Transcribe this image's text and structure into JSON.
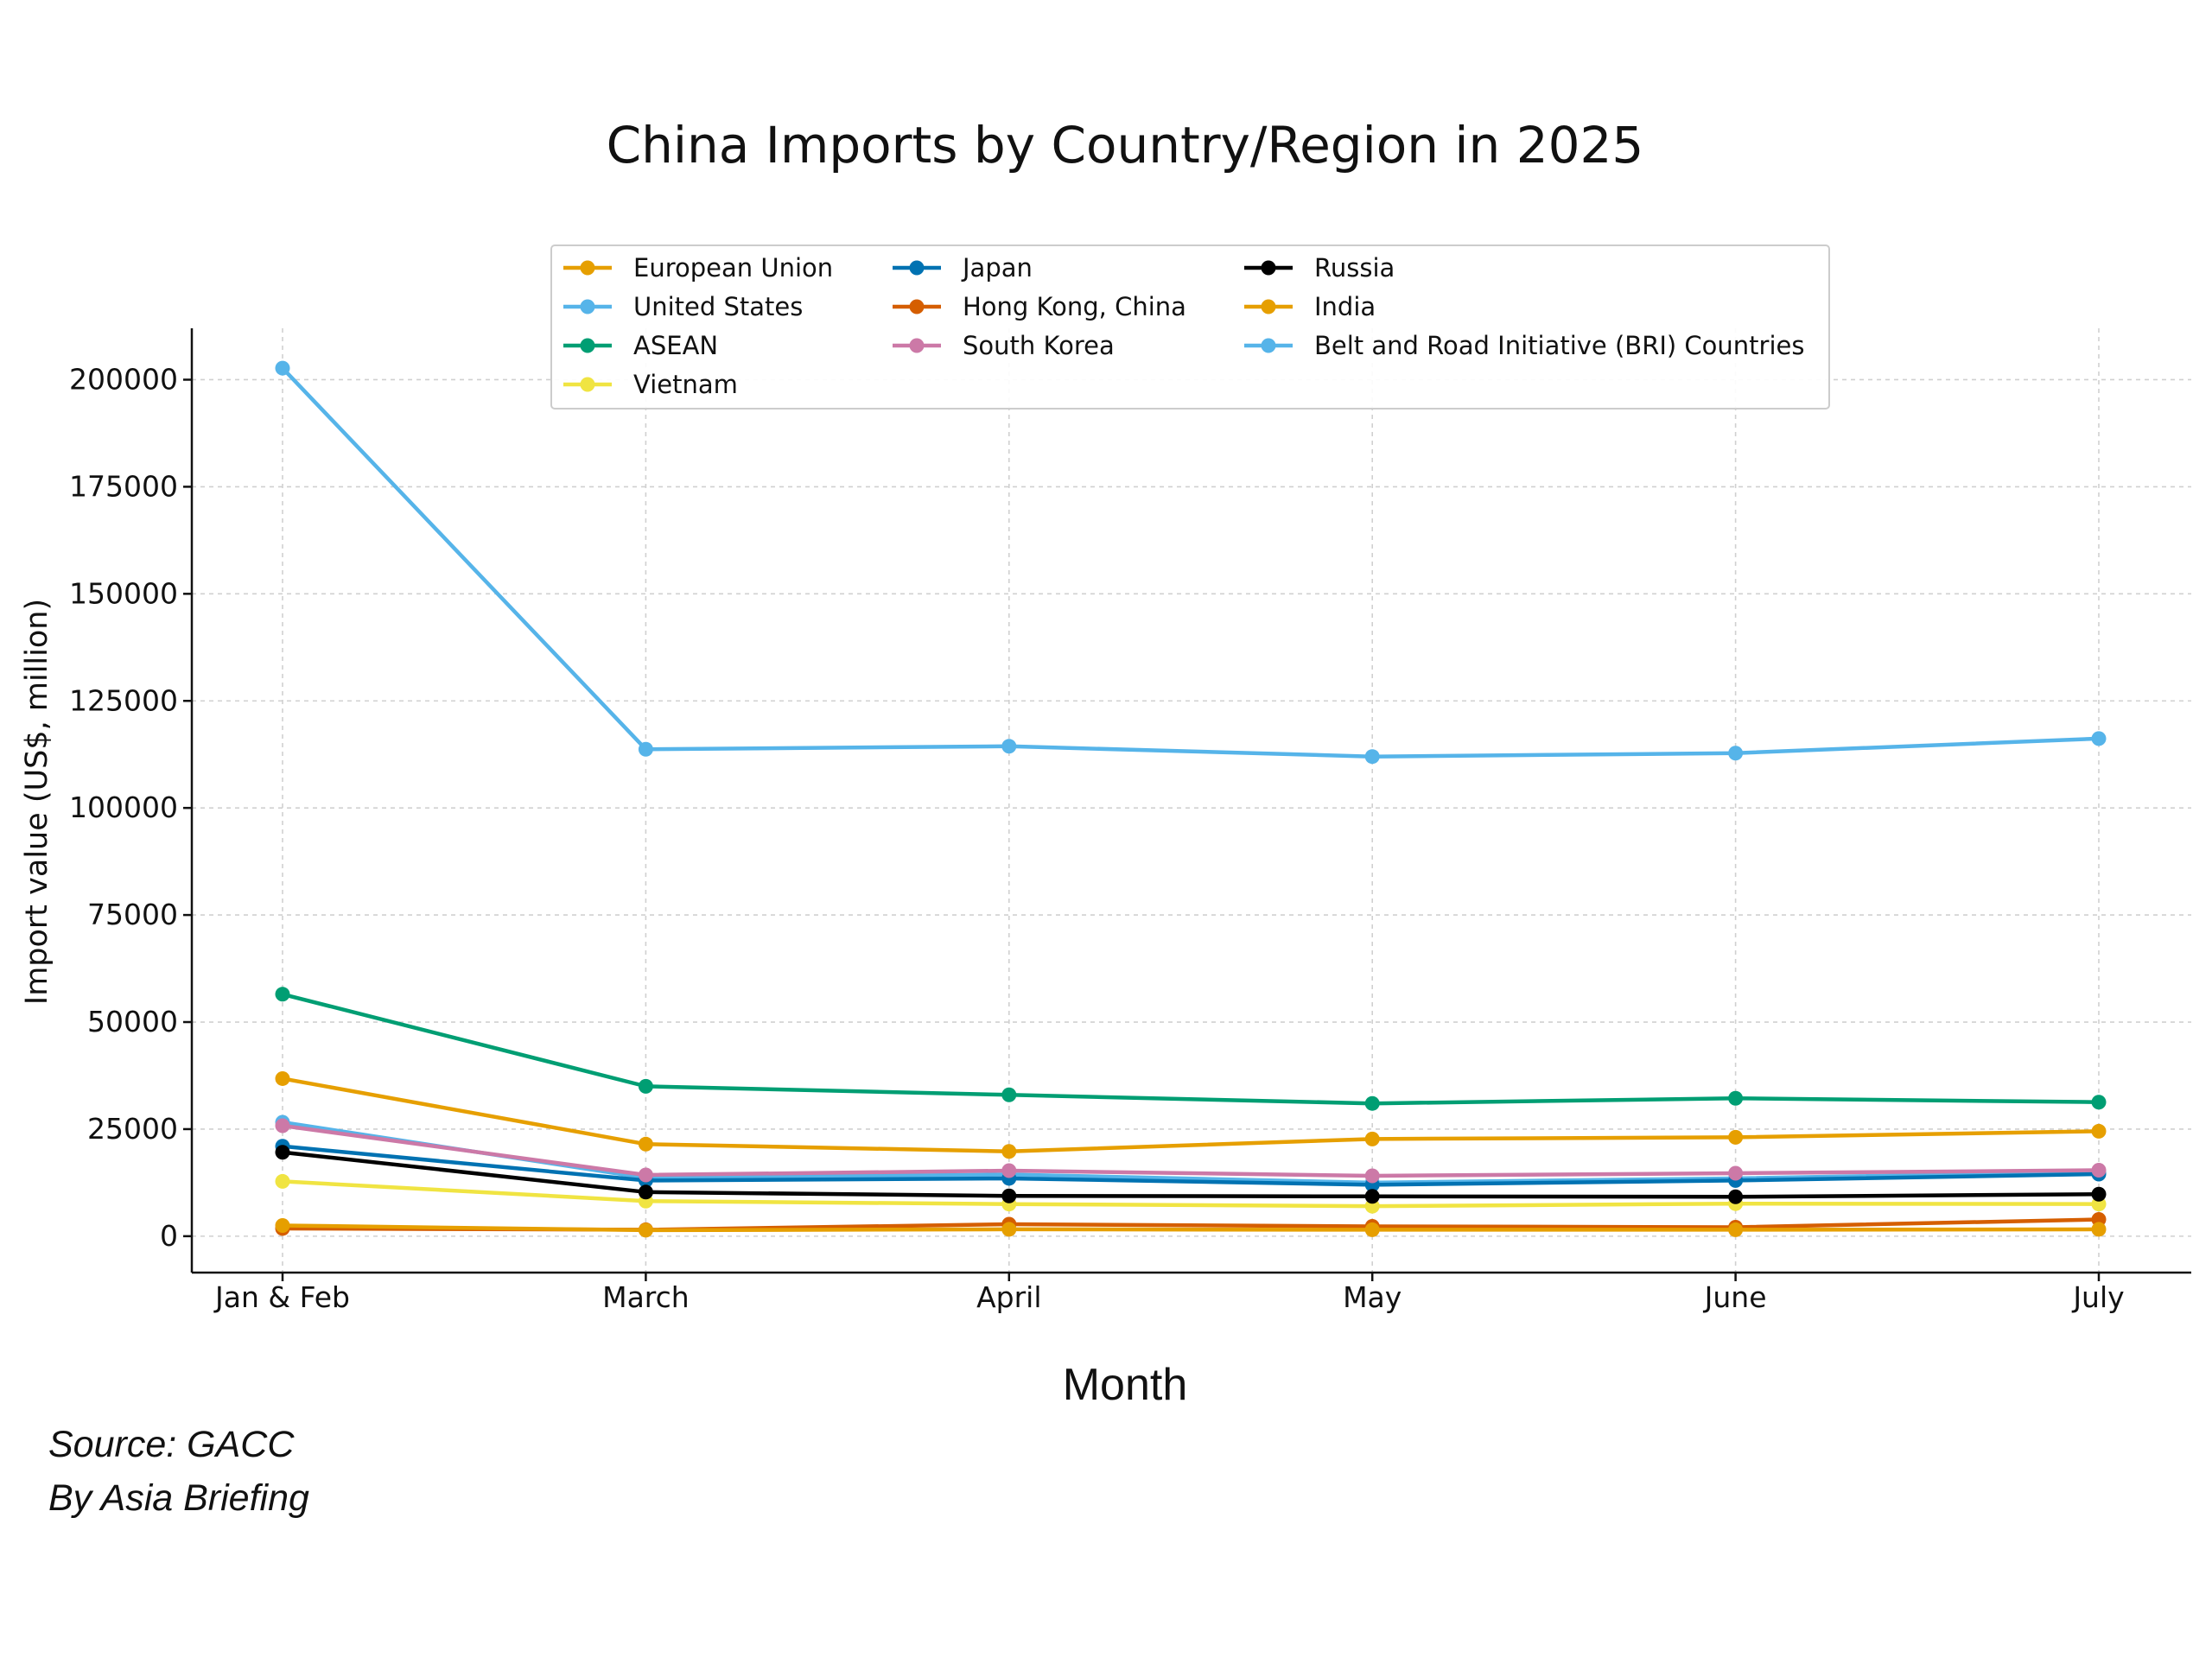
{
  "chart_data": {
    "type": "line",
    "title": "China Imports by Country/Region in 2025",
    "xlabel": "Month",
    "ylabel": "Import value (US$, million)",
    "categories": [
      "Jan & Feb",
      "March",
      "April",
      "May",
      "June",
      "July"
    ],
    "ylim": [
      -8500,
      212000
    ],
    "yticks": [
      0,
      25000,
      50000,
      75000,
      100000,
      125000,
      150000,
      175000,
      200000
    ],
    "grid": true,
    "legend_position": "top-center",
    "series": [
      {
        "name": "European Union",
        "color": "#E69F00",
        "values": [
          36800,
          21500,
          19800,
          22700,
          23100,
          24500
        ]
      },
      {
        "name": "United States",
        "color": "#56B4E9",
        "values": [
          26600,
          13600,
          14400,
          12500,
          13500,
          15000
        ]
      },
      {
        "name": "ASEAN",
        "color": "#009E73",
        "values": [
          56500,
          35000,
          33000,
          31000,
          32200,
          31300
        ]
      },
      {
        "name": "Vietnam",
        "color": "#F0E442",
        "values": [
          12800,
          8200,
          7500,
          7000,
          7600,
          7500
        ]
      },
      {
        "name": "Japan",
        "color": "#0072B2",
        "values": [
          21000,
          13000,
          13500,
          12000,
          13000,
          14500
        ]
      },
      {
        "name": "Hong Kong, China",
        "color": "#D55E00",
        "values": [
          1800,
          1500,
          2800,
          2300,
          2100,
          3900
        ]
      },
      {
        "name": "South Korea",
        "color": "#CC79A7",
        "values": [
          25800,
          14300,
          15300,
          14100,
          14700,
          15400
        ]
      },
      {
        "name": "Russia",
        "color": "#000000",
        "values": [
          19600,
          10300,
          9400,
          9300,
          9200,
          9800
        ]
      },
      {
        "name": "India",
        "color": "#E69F00",
        "values": [
          2500,
          1400,
          1600,
          1500,
          1500,
          1600
        ]
      },
      {
        "name": "Belt and Road Initiative (BRI) Countries",
        "color": "#56B4E9",
        "values": [
          202700,
          113700,
          114400,
          112000,
          112800,
          116200
        ]
      }
    ]
  },
  "source": {
    "line1": "Source: GACC",
    "line2": "By Asia Briefing"
  }
}
